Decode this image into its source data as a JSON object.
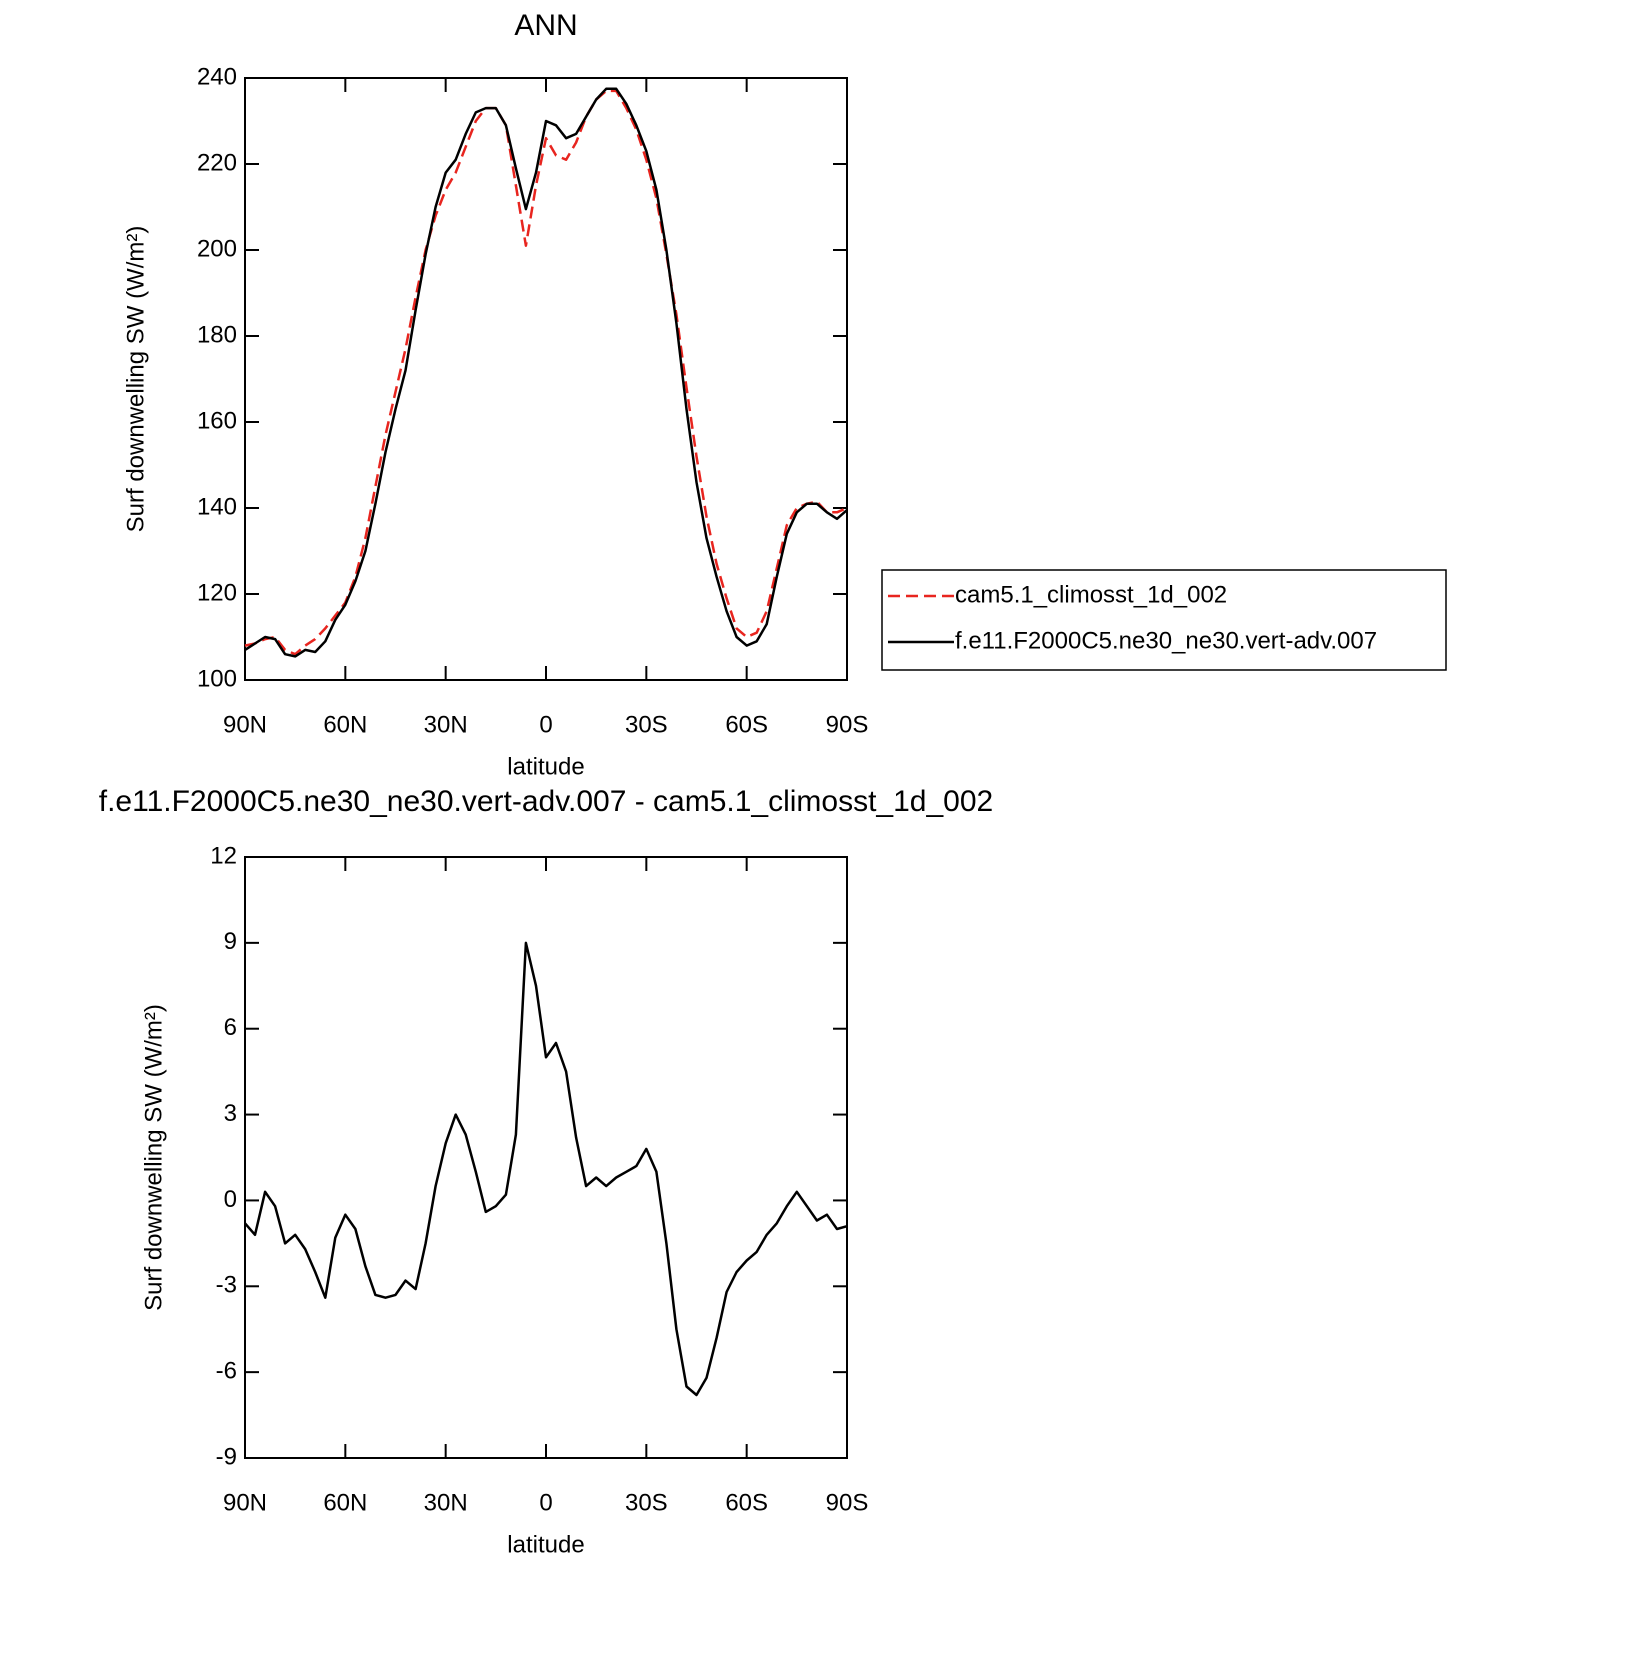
{
  "chart_data": [
    {
      "type": "line",
      "title": "ANN",
      "x_label": "latitude",
      "y_label": "Surf downwelling SW (W/m²)",
      "x": [
        90,
        87,
        84,
        81,
        78,
        75,
        72,
        69,
        66,
        63,
        60,
        57,
        54,
        51,
        48,
        45,
        42,
        39,
        36,
        33,
        30,
        27,
        24,
        21,
        18,
        15,
        12,
        9,
        6,
        3,
        0,
        -3,
        -6,
        -9,
        -12,
        -15,
        -18,
        -21,
        -24,
        -27,
        -30,
        -33,
        -36,
        -39,
        -42,
        -45,
        -48,
        -51,
        -54,
        -57,
        -60,
        -63,
        -66,
        -69,
        -72,
        -75,
        -78,
        -81,
        -84,
        -87,
        -90
      ],
      "series": [
        {
          "name": "cam5.1_climosst_1d_002",
          "color": "#e8251f",
          "dash": true,
          "values": [
            108,
            108.5,
            109.5,
            110,
            107,
            106,
            108,
            109.5,
            112,
            115,
            118,
            124,
            133,
            145,
            157,
            167,
            177,
            189,
            200,
            208,
            214,
            218,
            224,
            230,
            233,
            233,
            229,
            215,
            201,
            215,
            226,
            222,
            221,
            225,
            231,
            235,
            237,
            237,
            233,
            228,
            221,
            212,
            199,
            185,
            168,
            152,
            138,
            127,
            119,
            112,
            110,
            111,
            116,
            126,
            136,
            140,
            141,
            141.5,
            139,
            139,
            140
          ]
        },
        {
          "name": "f.e11.F2000C5.ne30_ne30.vert-adv.007",
          "color": "#000000",
          "dash": false,
          "values": [
            107,
            108.5,
            110,
            109.5,
            106,
            105.5,
            107,
            106.5,
            109,
            114,
            117.5,
            123,
            130,
            141,
            153,
            163,
            172,
            186,
            199,
            210,
            218,
            221,
            227,
            232,
            233,
            233,
            229,
            219,
            209.5,
            218,
            230,
            229,
            226,
            227,
            231,
            235,
            237.5,
            237.5,
            234,
            229,
            223,
            214,
            200,
            183,
            163,
            146,
            133,
            124,
            116,
            110,
            108,
            109,
            113,
            124,
            134,
            139,
            141,
            141,
            139,
            137.5,
            139.5
          ]
        }
      ],
      "xlim": [
        90,
        -90
      ],
      "xticks": [
        {
          "value": 90,
          "label": "90N"
        },
        {
          "value": 60,
          "label": "60N"
        },
        {
          "value": 30,
          "label": "30N"
        },
        0,
        {
          "value": -30,
          "label": "30S"
        },
        {
          "value": -60,
          "label": "60S"
        },
        {
          "value": -90,
          "label": "90S"
        }
      ],
      "ylim": [
        100,
        240
      ],
      "yticks": [
        100,
        120,
        140,
        160,
        180,
        200,
        220,
        240
      ],
      "legend": "right"
    },
    {
      "type": "line",
      "title": "f.e11.F2000C5.ne30_ne30.vert-adv.007 - cam5.1_climosst_1d_002",
      "x_label": "latitude",
      "y_label": "Surf downwelling SW (W/m²)",
      "x": [
        90,
        87,
        84,
        81,
        78,
        75,
        72,
        69,
        66,
        63,
        60,
        57,
        54,
        51,
        48,
        45,
        42,
        39,
        36,
        33,
        30,
        27,
        24,
        21,
        18,
        15,
        12,
        9,
        6,
        3,
        0,
        -3,
        -6,
        -9,
        -12,
        -15,
        -18,
        -21,
        -24,
        -27,
        -30,
        -33,
        -36,
        -39,
        -42,
        -45,
        -48,
        -51,
        -54,
        -57,
        -60,
        -63,
        -66,
        -69,
        -72,
        -75,
        -78,
        -81,
        -84,
        -87,
        -90
      ],
      "series": [
        {
          "color": "#000000",
          "dash": false,
          "values": [
            -0.8,
            -1.2,
            0.3,
            -0.2,
            -1.5,
            -1.2,
            -1.7,
            -2.5,
            -3.4,
            -1.3,
            -0.5,
            -1.0,
            -2.3,
            -3.3,
            -3.4,
            -3.3,
            -2.8,
            -3.1,
            -1.5,
            0.5,
            2.0,
            3.0,
            2.3,
            1.0,
            -0.4,
            -0.2,
            0.2,
            2.3,
            9.0,
            7.5,
            5.0,
            5.5,
            4.5,
            2.2,
            0.5,
            0.8,
            0.5,
            0.8,
            1.0,
            1.2,
            1.8,
            1.0,
            -1.5,
            -4.5,
            -6.5,
            -6.8,
            -6.2,
            -4.8,
            -3.2,
            -2.5,
            -2.1,
            -1.8,
            -1.2,
            -0.8,
            -0.2,
            0.3,
            -0.2,
            -0.7,
            -0.5,
            -1.0,
            -0.9
          ]
        }
      ],
      "xlim": [
        90,
        -90
      ],
      "xticks": [
        {
          "value": 90,
          "label": "90N"
        },
        {
          "value": 60,
          "label": "60N"
        },
        {
          "value": 30,
          "label": "30N"
        },
        0,
        {
          "value": -30,
          "label": "30S"
        },
        {
          "value": -60,
          "label": "60S"
        },
        {
          "value": -90,
          "label": "90S"
        }
      ],
      "ylim": [
        -9,
        12
      ],
      "yticks": [
        -9,
        -6,
        -3,
        0,
        3,
        6,
        9,
        12
      ]
    }
  ]
}
